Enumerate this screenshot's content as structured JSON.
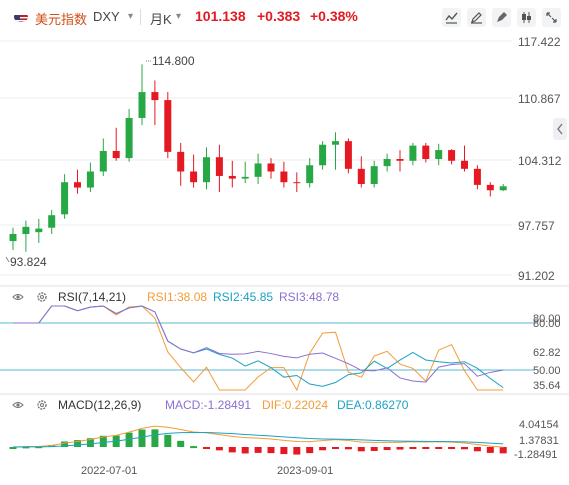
{
  "header": {
    "name": "美元指数",
    "code": "DXY",
    "period": "月K",
    "price": "101.138",
    "change": "+0.383",
    "change_pct": "+0.38%"
  },
  "toolbar": {
    "icons": [
      "line-chart-icon",
      "edit-icon",
      "pen-icon",
      "candle-style-icon",
      "fullscreen-icon"
    ]
  },
  "main_axis": {
    "labels": [
      "117.422",
      "110.867",
      "104.312",
      "97.757",
      "91.202"
    ]
  },
  "annotations": {
    "high": "114.800",
    "low": "93.824"
  },
  "rsi": {
    "title": "RSI(7,14,21)",
    "rsi1": "RSI1:38.08",
    "rsi2": "RSI2:45.85",
    "rsi3": "RSI3:48.78",
    "axis_labels": [
      "80.00",
      "62.82",
      "50.00",
      "35.64"
    ],
    "colors": {
      "rsi1": "#f39c38",
      "rsi2": "#1ba2c4",
      "rsi3": "#8c6fd1"
    }
  },
  "macd": {
    "title": "MACD(12,26,9)",
    "macd": "MACD:-1.28491",
    "dif": "DIF:0.22024",
    "dea": "DEA:0.86270",
    "axis_labels": [
      "4.04154",
      "1.37831",
      "-1.28491"
    ],
    "colors": {
      "macd": "#8c6fd1",
      "dif": "#f39c38",
      "dea": "#1ba2c4"
    }
  },
  "x_axis": {
    "labels": [
      "2022-07-01",
      "2023-09-01"
    ]
  },
  "colors": {
    "up": "#27a844",
    "down": "#e51921",
    "accent": "#d34e16"
  },
  "chart_data": {
    "type": "candlestick",
    "y_axis_ticks": [
      117.422,
      110.867,
      104.312,
      97.757,
      91.202
    ],
    "candles": [
      {
        "o": 95.0,
        "h": 96.5,
        "l": 94.0,
        "c": 95.8
      },
      {
        "o": 95.8,
        "h": 97.3,
        "l": 93.8,
        "c": 96.6
      },
      {
        "o": 96.0,
        "h": 97.5,
        "l": 94.8,
        "c": 96.4
      },
      {
        "o": 96.5,
        "h": 98.5,
        "l": 95.8,
        "c": 97.9
      },
      {
        "o": 98.0,
        "h": 102.5,
        "l": 97.5,
        "c": 101.6
      },
      {
        "o": 101.6,
        "h": 103.0,
        "l": 100.3,
        "c": 101.0
      },
      {
        "o": 101.0,
        "h": 103.8,
        "l": 100.5,
        "c": 102.8
      },
      {
        "o": 102.8,
        "h": 106.5,
        "l": 102.3,
        "c": 105.1
      },
      {
        "o": 105.1,
        "h": 107.7,
        "l": 104.0,
        "c": 104.3
      },
      {
        "o": 104.3,
        "h": 109.8,
        "l": 103.9,
        "c": 108.8
      },
      {
        "o": 108.8,
        "h": 114.8,
        "l": 108.0,
        "c": 111.7
      },
      {
        "o": 111.7,
        "h": 113.0,
        "l": 108.0,
        "c": 110.8
      },
      {
        "o": 110.8,
        "h": 111.7,
        "l": 104.3,
        "c": 105.0
      },
      {
        "o": 105.0,
        "h": 106.0,
        "l": 101.2,
        "c": 102.8
      },
      {
        "o": 102.8,
        "h": 104.7,
        "l": 101.0,
        "c": 101.6
      },
      {
        "o": 101.6,
        "h": 105.5,
        "l": 100.8,
        "c": 104.4
      },
      {
        "o": 104.4,
        "h": 105.8,
        "l": 100.5,
        "c": 102.3
      },
      {
        "o": 102.3,
        "h": 104.0,
        "l": 101.0,
        "c": 102.0
      },
      {
        "o": 102.0,
        "h": 103.9,
        "l": 101.5,
        "c": 102.2
      },
      {
        "o": 102.2,
        "h": 104.8,
        "l": 101.4,
        "c": 103.7
      },
      {
        "o": 103.7,
        "h": 104.3,
        "l": 102.0,
        "c": 102.8
      },
      {
        "o": 102.8,
        "h": 103.9,
        "l": 101.0,
        "c": 101.6
      },
      {
        "o": 101.6,
        "h": 102.7,
        "l": 100.5,
        "c": 101.5
      },
      {
        "o": 101.5,
        "h": 104.3,
        "l": 101.0,
        "c": 103.5
      },
      {
        "o": 103.5,
        "h": 106.2,
        "l": 103.0,
        "c": 105.8
      },
      {
        "o": 105.8,
        "h": 107.2,
        "l": 103.0,
        "c": 106.2
      },
      {
        "o": 106.2,
        "h": 106.5,
        "l": 102.6,
        "c": 103.1
      },
      {
        "o": 103.1,
        "h": 104.5,
        "l": 101.0,
        "c": 101.4
      },
      {
        "o": 101.4,
        "h": 104.0,
        "l": 101.0,
        "c": 103.4
      },
      {
        "o": 103.4,
        "h": 104.8,
        "l": 102.8,
        "c": 104.2
      },
      {
        "o": 104.2,
        "h": 105.2,
        "l": 102.8,
        "c": 104.0
      },
      {
        "o": 104.0,
        "h": 106.0,
        "l": 103.5,
        "c": 105.7
      },
      {
        "o": 105.7,
        "h": 106.0,
        "l": 103.8,
        "c": 104.2
      },
      {
        "o": 104.2,
        "h": 105.9,
        "l": 103.5,
        "c": 105.2
      },
      {
        "o": 105.2,
        "h": 105.3,
        "l": 103.6,
        "c": 104.0
      },
      {
        "o": 104.0,
        "h": 105.7,
        "l": 102.8,
        "c": 103.1
      },
      {
        "o": 103.1,
        "h": 103.5,
        "l": 100.8,
        "c": 101.3
      },
      {
        "o": 101.3,
        "h": 101.6,
        "l": 100.0,
        "c": 100.7
      },
      {
        "o": 100.7,
        "h": 101.4,
        "l": 100.6,
        "c": 101.138
      }
    ]
  }
}
